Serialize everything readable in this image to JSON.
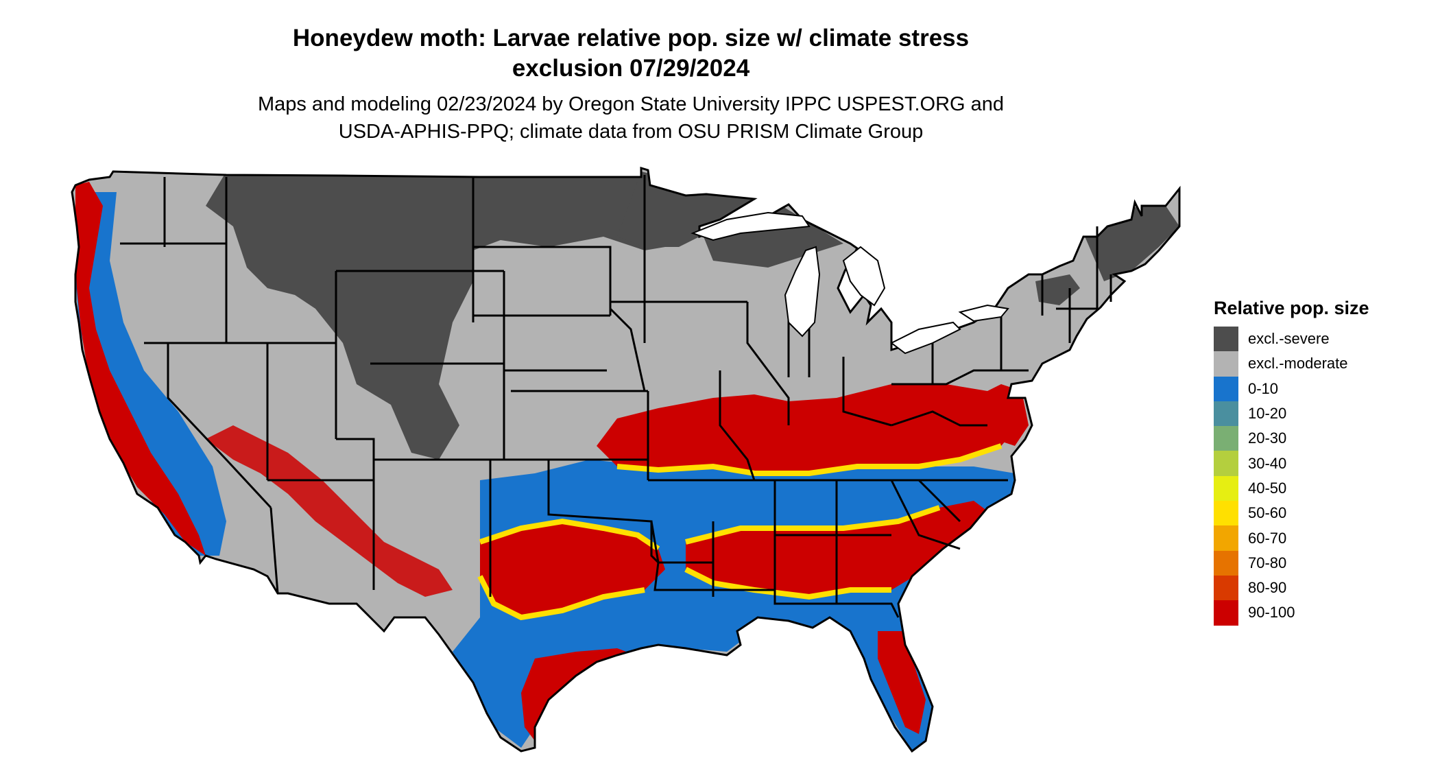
{
  "title_line1": "Honeydew moth: Larvae relative pop. size w/ climate stress",
  "title_line2": "exclusion 07/29/2024",
  "subtitle_line1": "Maps and modeling 02/23/2024 by Oregon State University IPPC USPEST.ORG and",
  "subtitle_line2": "USDA-APHIS-PPQ; climate data from OSU PRISM Climate Group",
  "legend": {
    "title": "Relative pop. size",
    "items": [
      {
        "label": "excl.-severe",
        "color": "#4d4d4d"
      },
      {
        "label": "excl.-moderate",
        "color": "#b3b3b3"
      },
      {
        "label": "0-10",
        "color": "#1874cd"
      },
      {
        "label": "10-20",
        "color": "#4a8f9f"
      },
      {
        "label": "20-30",
        "color": "#7aaf73"
      },
      {
        "label": "30-40",
        "color": "#b4cf3e"
      },
      {
        "label": "40-50",
        "color": "#e6ee12"
      },
      {
        "label": "50-60",
        "color": "#ffe000"
      },
      {
        "label": "60-70",
        "color": "#f2a600"
      },
      {
        "label": "70-80",
        "color": "#e67300"
      },
      {
        "label": "80-90",
        "color": "#d93a00"
      },
      {
        "label": "90-100",
        "color": "#cc0000"
      }
    ]
  },
  "map_colors": {
    "severe": "#4d4d4d",
    "moderate": "#b3b3b3",
    "low": "#1874cd",
    "mid": "#ffe000",
    "high": "#cc0000",
    "water": "#ffffff",
    "border": "#000000"
  }
}
